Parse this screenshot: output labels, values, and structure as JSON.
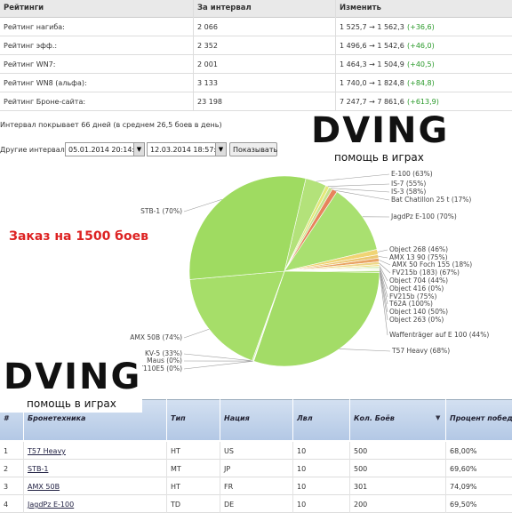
{
  "ratings": {
    "headers": [
      "Рейтинги",
      "За интервал",
      "Изменить"
    ],
    "rows": [
      [
        "Рейтинг нагиба:",
        "2 066",
        "1 525,7 → 1 562,3",
        "(+36,6)"
      ],
      [
        "Рейтинг эфф.:",
        "2 352",
        "1 496,6 → 1 542,6",
        "(+46,0)"
      ],
      [
        "Рейтинг WN7:",
        "2 001",
        "1 464,3 → 1 504,9",
        "(+40,5)"
      ],
      [
        "Рейтинг WN8 (альфа):",
        "3 133",
        "1 740,0 → 1 824,8",
        "(+84,8)"
      ],
      [
        "Рейтинг Броне-сайта:",
        "23 198",
        "7 247,7 → 7 861,6",
        "(+613,9)"
      ]
    ]
  },
  "interval_text": "Интервал покрывает 66 дней (в среднем 26,5 боев в день)",
  "other_intervals": {
    "label": "Другие интервалы:",
    "from": "05.01.2014 20:14:22",
    "to": "12.03.2014 18:57:03",
    "button": "Показывать"
  },
  "logos": [
    {
      "title": "DVING",
      "subtitle": "помощь в играх"
    },
    {
      "title": "DVING",
      "subtitle": "помощь в играх"
    }
  ],
  "order_text": "Заказ на 1500 боев",
  "chart_data": {
    "type": "pie",
    "labels": [
      "E-100 (63%)",
      "IS-7 (55%)",
      "IS-3 (58%)",
      "Bat Chatillon 25 t (17%)",
      "JagdPz E-100 (70%)",
      "Object 268 (46%)",
      "AMX 13 90 (75%)",
      "AMX 50 Foch 155 (18%)",
      "FV215b (183) (67%)",
      "Object 704 (44%)",
      "Object 416 (0%)",
      "FV215b (75%)",
      "T62A (100%)",
      "Object 140 (50%)",
      "Object 263 (0%)",
      "Waffenträger auf E 100 (44%)",
      "T57 Heavy (68%)",
      "T110E5 (0%)",
      "Maus (0%)",
      "KV-5 (33%)",
      "AMX 50B (74%)",
      "STB-1 (70%)"
    ],
    "values": [
      60,
      10,
      10,
      15,
      200,
      15,
      10,
      10,
      8,
      5,
      3,
      3,
      2,
      2,
      2,
      5,
      500,
      1,
      1,
      3,
      301,
      500
    ],
    "colors": [
      "#b3e27a",
      "#e4e87a",
      "#c6e48c",
      "#e7845c",
      "#a9e070",
      "#f0d474",
      "#ecc872",
      "#e9a465",
      "#eed888",
      "#f2e08a",
      "#b9e48a",
      "#c2e690",
      "#b5e285",
      "#bde58c",
      "#c4e894",
      "#b0e07c",
      "#a3dc67",
      "#a7de6c",
      "#aadf70",
      "#b2e17a",
      "#a6de69",
      "#9fdb61"
    ]
  },
  "vehicles": {
    "headers": [
      "#",
      "Бронетехника",
      "Тип",
      "Нация",
      "Лвл",
      "Кол. Боёв",
      "Процент побед"
    ],
    "rows": [
      [
        "1",
        "T57 Heavy",
        "HT",
        "US",
        "10",
        "500",
        "68,00%"
      ],
      [
        "2",
        "STB-1",
        "MT",
        "JP",
        "10",
        "500",
        "69,60%"
      ],
      [
        "3",
        "AMX 50B",
        "HT",
        "FR",
        "10",
        "301",
        "74,09%"
      ],
      [
        "4",
        "JagdPz E-100",
        "TD",
        "DE",
        "10",
        "200",
        "69,50%"
      ]
    ]
  }
}
